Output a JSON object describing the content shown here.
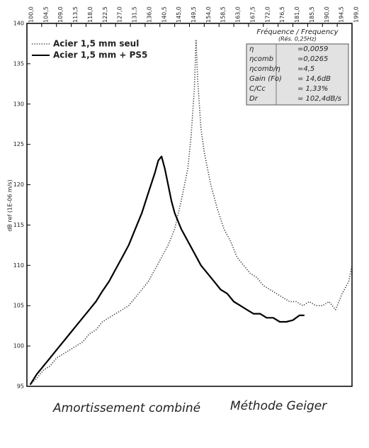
{
  "chart_data": {
    "type": "line",
    "y_label": "dB ref (1E-06 m/s)",
    "caption_left": "Amortissement combiné",
    "caption_right": "Méthode Geiger",
    "xlim": [
      100,
      199
    ],
    "xticks": [
      {
        "value": 100,
        "label": "100,0"
      },
      {
        "value": 104.5,
        "label": "104,5"
      },
      {
        "value": 109,
        "label": "109,0"
      },
      {
        "value": 113.5,
        "label": "113,5"
      },
      {
        "value": 118,
        "label": "118,0"
      },
      {
        "value": 122.5,
        "label": "122,5"
      },
      {
        "value": 127,
        "label": "127,0"
      },
      {
        "value": 131.5,
        "label": "131,5"
      },
      {
        "value": 136,
        "label": "136,0"
      },
      {
        "value": 140.5,
        "label": "140,5"
      },
      {
        "value": 145,
        "label": "145,0"
      },
      {
        "value": 149.5,
        "label": "149,5"
      },
      {
        "value": 154,
        "label": "154,0"
      },
      {
        "value": 158.5,
        "label": "158,5"
      },
      {
        "value": 163,
        "label": "163,0"
      },
      {
        "value": 167.5,
        "label": "167,5"
      },
      {
        "value": 172,
        "label": "172,0"
      },
      {
        "value": 176.5,
        "label": "176,5"
      },
      {
        "value": 181,
        "label": "181,0"
      },
      {
        "value": 185.5,
        "label": "185,5"
      },
      {
        "value": 190,
        "label": "190,0"
      },
      {
        "value": 194.5,
        "label": "194,5"
      },
      {
        "value": 199,
        "label": "199,0"
      }
    ],
    "ylim": [
      95,
      140
    ],
    "yticks": [
      95,
      100,
      105,
      110,
      115,
      120,
      125,
      130,
      135,
      140
    ],
    "series": [
      {
        "name": "Acier 1,5 mm seul",
        "color": "#333",
        "dash": "dotted",
        "x": [
          101,
          103,
          105,
          107,
          109,
          111,
          113,
          115,
          117,
          119,
          121,
          123,
          125,
          127,
          129,
          131,
          133,
          135,
          137,
          139,
          141,
          143,
          145,
          147,
          149,
          150,
          151,
          151.5,
          152,
          153,
          154,
          156,
          158,
          160,
          162,
          164,
          166,
          168,
          170,
          172,
          174,
          176,
          178,
          180,
          182,
          184,
          186,
          188,
          190,
          192,
          194,
          196,
          198,
          199
        ],
        "values": [
          95.2,
          96,
          97,
          97.5,
          98.5,
          99,
          99.5,
          100,
          100.5,
          101.5,
          102,
          103,
          103.5,
          104,
          104.5,
          105,
          106,
          107,
          108,
          109.5,
          111,
          112.5,
          114.5,
          118,
          122,
          126,
          132,
          138,
          133,
          127,
          124,
          120,
          117,
          114.5,
          113,
          111,
          110,
          109,
          108.5,
          107.5,
          107,
          106.5,
          106,
          105.5,
          105.5,
          105,
          105.5,
          105,
          105,
          105.5,
          104.5,
          106.5,
          108,
          110
        ]
      },
      {
        "name": "Acier 1,5 mm + PS5",
        "color": "#000",
        "dash": "solid",
        "x": [
          101,
          103,
          105,
          107,
          109,
          111,
          113,
          115,
          117,
          119,
          121,
          123,
          125,
          127,
          129,
          131,
          133,
          135,
          137,
          139,
          140,
          141,
          142,
          143,
          144,
          145,
          147,
          149,
          151,
          153,
          155,
          157,
          159,
          161,
          163,
          165,
          167,
          169,
          171,
          173,
          175,
          177,
          179,
          181,
          183,
          184.5
        ],
        "values": [
          95.2,
          96.5,
          97.5,
          98.5,
          99.5,
          100.5,
          101.5,
          102.5,
          103.5,
          104.5,
          105.5,
          106.8,
          108,
          109.5,
          111,
          112.5,
          114.5,
          116.5,
          119,
          121.5,
          123,
          123.5,
          122,
          120,
          118,
          116.5,
          114.5,
          113,
          111.5,
          110,
          109,
          108,
          107,
          106.5,
          105.5,
          105,
          104.5,
          104,
          104,
          103.5,
          103.5,
          103,
          103,
          103.2,
          103.8,
          103.8
        ]
      }
    ],
    "info": {
      "header": "Fréquence / Frequency",
      "subheader": "(Rés. 0,25Hz)",
      "rows": [
        [
          "η",
          "=0,0059"
        ],
        [
          "ηcomb",
          "=0,0265"
        ],
        [
          "ηcomb/η",
          "=4,5"
        ],
        [
          "Gain (Fo)",
          "= 14,6dB"
        ],
        [
          "C/Cc",
          "= 1,33%"
        ],
        [
          "Dr",
          "= 102,4dB/s"
        ]
      ]
    }
  }
}
